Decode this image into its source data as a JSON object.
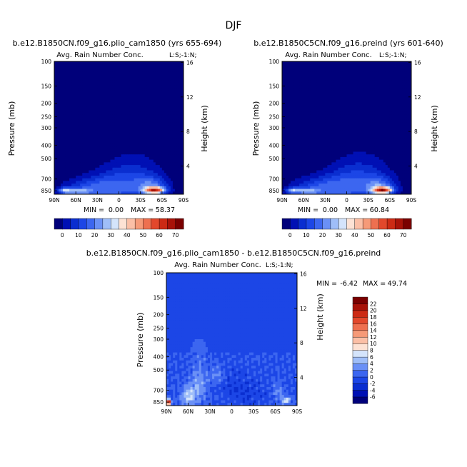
{
  "figure": {
    "season": "DJF"
  },
  "chart_data": [
    {
      "type": "heatmap",
      "title": "b.e12.B1850CN.f09_g16.plio_cam1850 (yrs 655-694)",
      "subtitle": "Avg. Rain Number Conc.",
      "corner_label": "L:S;-1:N;",
      "ylabel": "Pressure (mb)",
      "y2label": "Height (km)",
      "x_ticks": [
        "90N",
        "60N",
        "30N",
        "0",
        "30S",
        "60S",
        "90S"
      ],
      "y_ticks": [
        "100",
        "150",
        "200",
        "250",
        "300",
        "400",
        "500",
        "700",
        "850"
      ],
      "y2_ticks": [
        "16",
        "12",
        "8",
        "4"
      ],
      "stats": {
        "min_label": "MIN =",
        "min": "0.00",
        "max_label": "MAX =",
        "max": "58.37"
      },
      "field_blobs": [
        {
          "lat": 40,
          "p": 800,
          "dlat": 38,
          "dp": 120,
          "amp": 14
        },
        {
          "lat": 10,
          "p": 760,
          "dlat": 35,
          "dp": 160,
          "amp": 9
        },
        {
          "lat": -20,
          "p": 680,
          "dlat": 40,
          "dp": 220,
          "amp": 12
        },
        {
          "lat": -50,
          "p": 845,
          "dlat": 14,
          "dp": 45,
          "amp": 52
        },
        {
          "lat": -45,
          "p": 780,
          "dlat": 22,
          "dp": 110,
          "amp": 18
        },
        {
          "lat": 75,
          "p": 850,
          "dlat": 10,
          "dp": 40,
          "amp": 28
        },
        {
          "lat": 55,
          "p": 860,
          "dlat": 15,
          "dp": 40,
          "amp": 22
        },
        {
          "lat": 0,
          "p": 880,
          "dlat": 55,
          "dp": 70,
          "amp": 8
        }
      ]
    },
    {
      "type": "heatmap",
      "title": "b.e12.B1850C5CN.f09_g16.preind (yrs 601-640)",
      "subtitle": "Avg. Rain Number Conc.",
      "corner_label": "L:S;-1:N;",
      "ylabel": "Pressure (mb)",
      "y2label": "Height (km)",
      "x_ticks": [
        "90N",
        "60N",
        "30N",
        "0",
        "30S",
        "60S",
        "90S"
      ],
      "y_ticks": [
        "100",
        "150",
        "200",
        "250",
        "300",
        "400",
        "500",
        "700",
        "850"
      ],
      "y2_ticks": [
        "16",
        "12",
        "8",
        "4"
      ],
      "stats": {
        "min_label": "MIN =",
        "min": "0.00",
        "max_label": "MAX =",
        "max": "60.84"
      },
      "field_blobs": [
        {
          "lat": 40,
          "p": 800,
          "dlat": 38,
          "dp": 120,
          "amp": 14
        },
        {
          "lat": 10,
          "p": 760,
          "dlat": 35,
          "dp": 160,
          "amp": 9
        },
        {
          "lat": -20,
          "p": 680,
          "dlat": 40,
          "dp": 220,
          "amp": 13
        },
        {
          "lat": -50,
          "p": 845,
          "dlat": 14,
          "dp": 45,
          "amp": 55
        },
        {
          "lat": -45,
          "p": 780,
          "dlat": 22,
          "dp": 110,
          "amp": 18
        },
        {
          "lat": 75,
          "p": 850,
          "dlat": 10,
          "dp": 40,
          "amp": 25
        },
        {
          "lat": 55,
          "p": 860,
          "dlat": 15,
          "dp": 40,
          "amp": 22
        },
        {
          "lat": 0,
          "p": 880,
          "dlat": 55,
          "dp": 70,
          "amp": 8
        }
      ]
    },
    {
      "type": "heatmap",
      "title": "b.e12.B1850CN.f09_g16.plio_cam1850 - b.e12.B1850C5CN.f09_g16.preind",
      "subtitle": "Avg. Rain Number Conc.",
      "corner_label": "L:S;-1:N;",
      "ylabel": "Pressure (mb)",
      "y2label": "Height (km)",
      "x_ticks": [
        "90N",
        "60N",
        "30N",
        "0",
        "30S",
        "60S",
        "90S"
      ],
      "y_ticks": [
        "100",
        "150",
        "200",
        "250",
        "300",
        "400",
        "500",
        "700",
        "850"
      ],
      "y2_ticks": [
        "16",
        "12",
        "8",
        "4"
      ],
      "stats": {
        "min_label": "MIN =",
        "min": "-6.42",
        "max_label": "MAX =",
        "max": "49.74"
      },
      "field_blobs": [
        {
          "lat": 0,
          "p": 620,
          "dlat": 30,
          "dp": 130,
          "amp": -1.2
        },
        {
          "lat": -25,
          "p": 760,
          "dlat": 25,
          "dp": 120,
          "amp": -1.5
        },
        {
          "lat": 45,
          "p": 640,
          "dlat": 12,
          "dp": 200,
          "amp": 4
        },
        {
          "lat": 20,
          "p": 560,
          "dlat": 10,
          "dp": 80,
          "amp": 3
        },
        {
          "lat": 60,
          "p": 780,
          "dlat": 10,
          "dp": 120,
          "amp": 6
        },
        {
          "lat": 87,
          "p": 850,
          "dlat": 3,
          "dp": 40,
          "amp": 24
        },
        {
          "lat": -75,
          "p": 830,
          "dlat": 6,
          "dp": 50,
          "amp": 8
        },
        {
          "lat": -65,
          "p": 720,
          "dlat": 8,
          "dp": 90,
          "amp": 3
        }
      ]
    }
  ],
  "colorbars": {
    "abs": {
      "labels": [
        "0",
        "10",
        "20",
        "30",
        "40",
        "50",
        "60",
        "70"
      ],
      "colors": [
        "#00007a",
        "#0010b4",
        "#0a2ed0",
        "#1c46e6",
        "#3c66f0",
        "#6a90f6",
        "#9fbef8",
        "#d4e4fb",
        "#fde2d4",
        "#fbbfa6",
        "#f69a78",
        "#ee7050",
        "#e2482c",
        "#cc2a14",
        "#a81208",
        "#7a0000"
      ]
    },
    "diff": {
      "labels": [
        "-6",
        "-4",
        "-2",
        "0",
        "2",
        "4",
        "6",
        "8",
        "10",
        "12",
        "14",
        "16",
        "18",
        "20",
        "22"
      ],
      "colors": [
        "#00007a",
        "#0010b4",
        "#0a2ed0",
        "#1c46e6",
        "#3c66f0",
        "#6a90f6",
        "#9fbef8",
        "#d4e4fb",
        "#fde2d4",
        "#fbbfa6",
        "#f69a78",
        "#ee7050",
        "#e2482c",
        "#cc2a14",
        "#a81208",
        "#7a0000"
      ]
    }
  }
}
